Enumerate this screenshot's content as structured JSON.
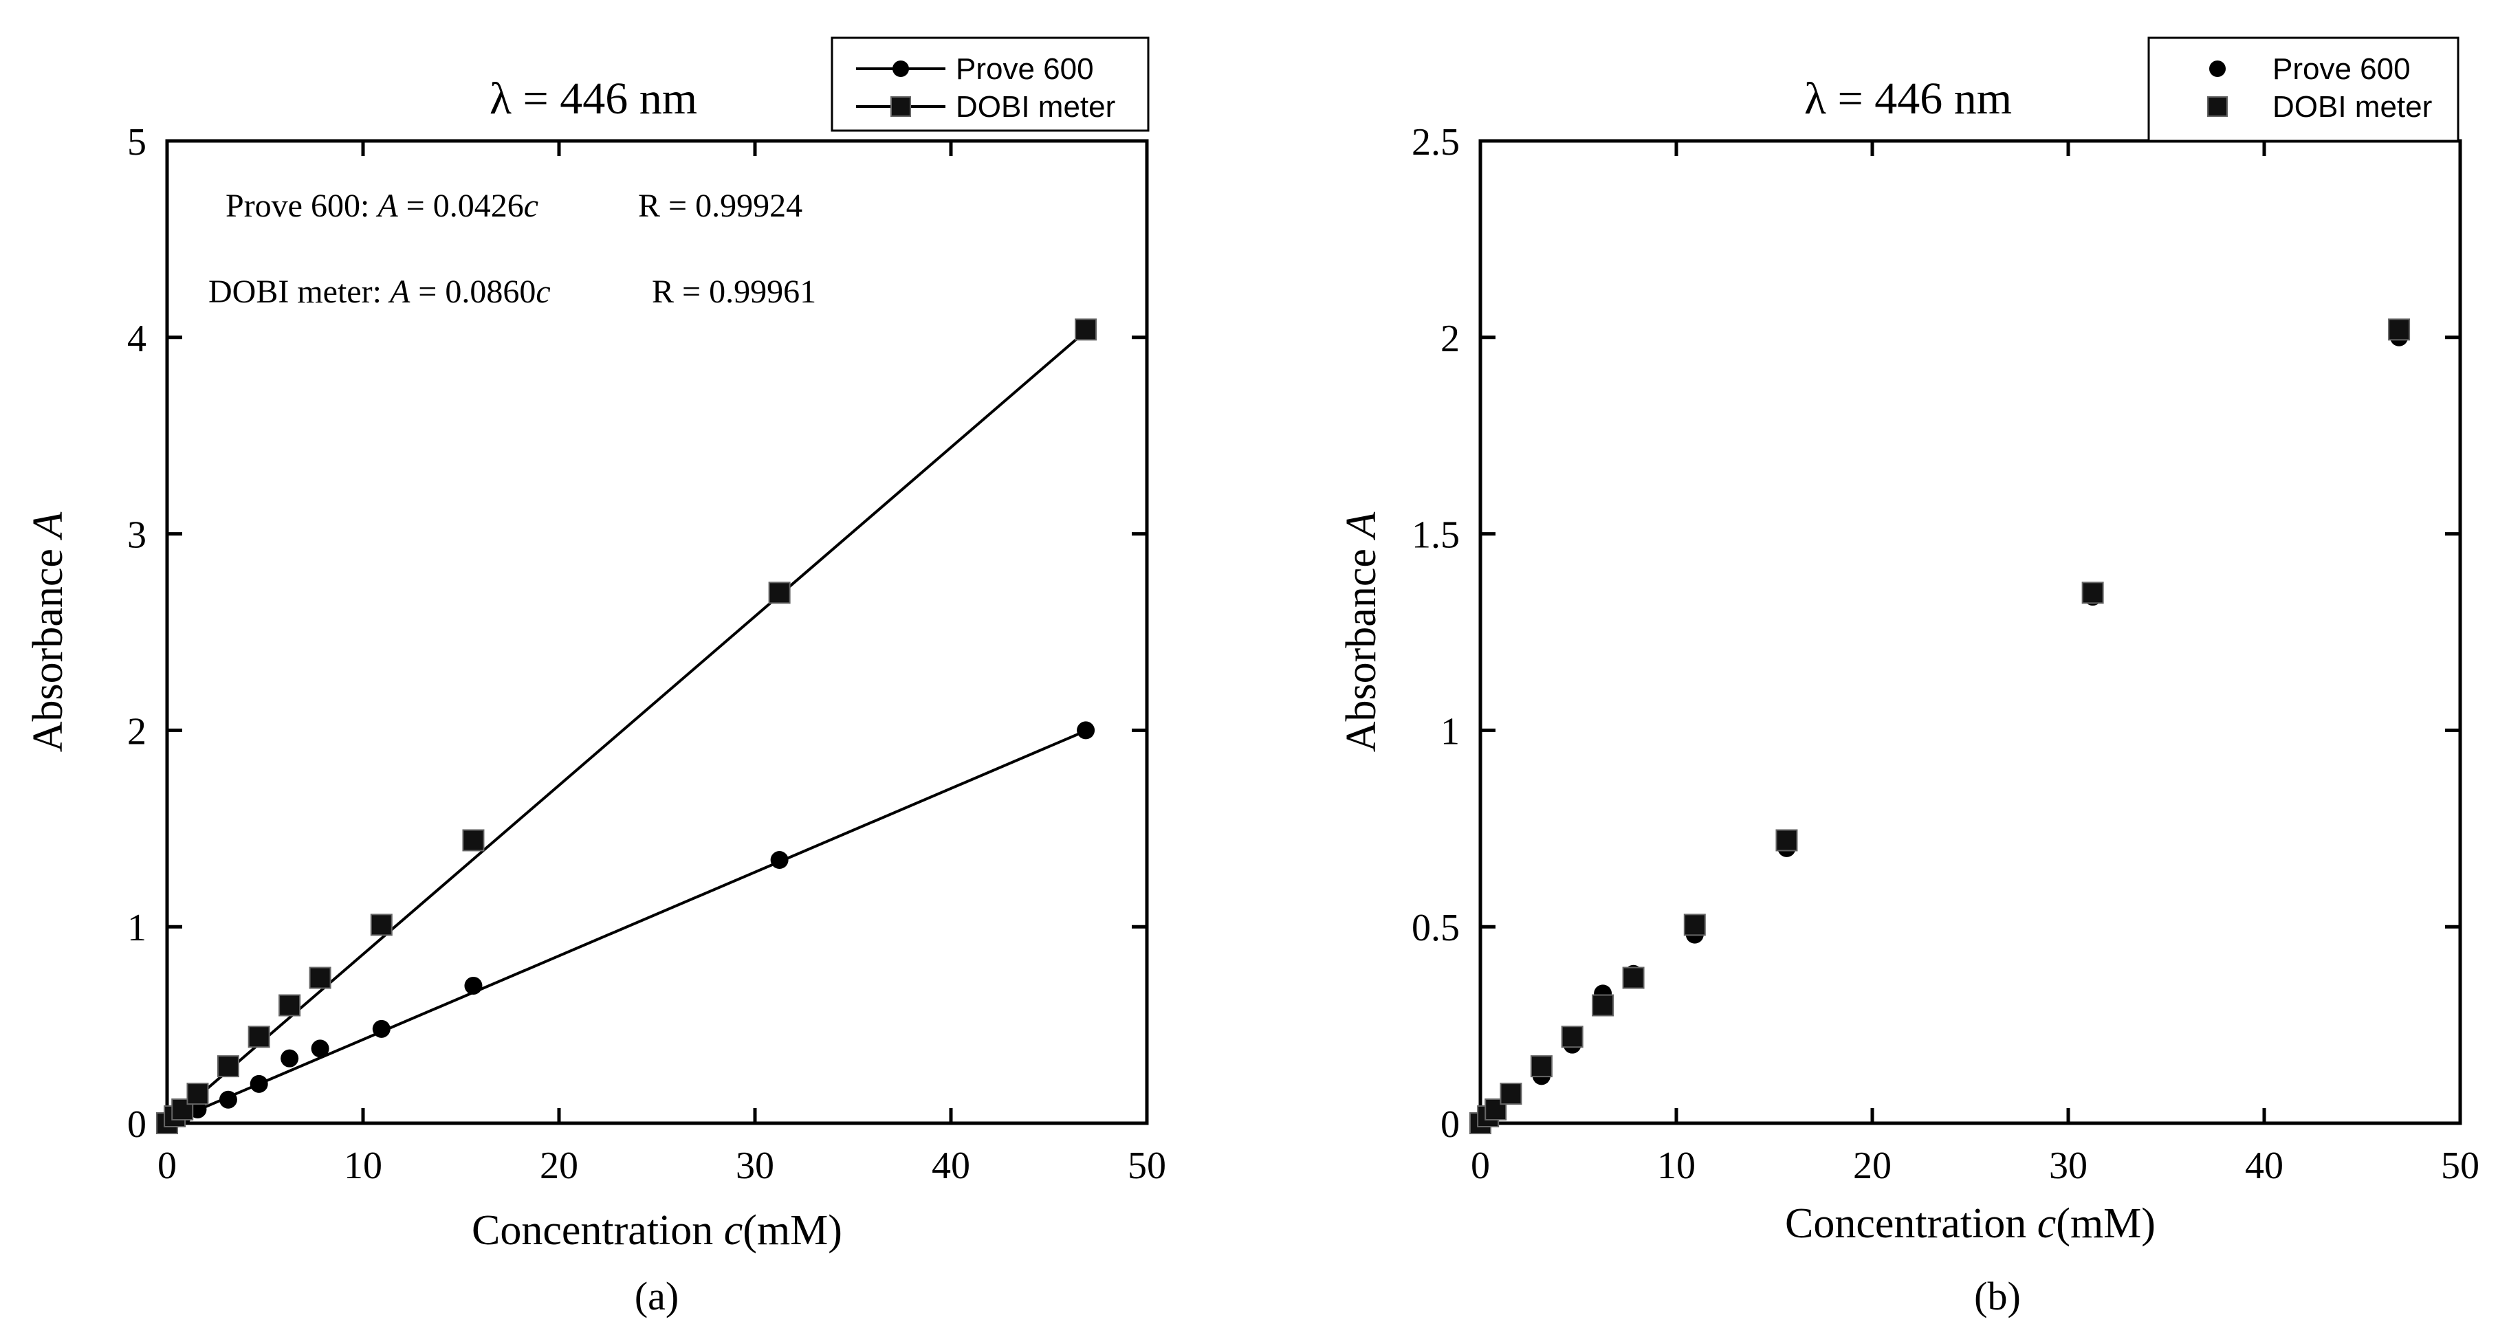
{
  "chart_data": [
    {
      "panel": "(a)",
      "type": "scatter",
      "title": "λ = 446 nm",
      "xlabel": "Concentration c(mM)",
      "xlabel_prefix": "Concentration ",
      "xlabel_var": "c",
      "xlabel_suffix": "(mM)",
      "ylabel": "Absorbance A",
      "ylabel_prefix": "Absorbance ",
      "ylabel_var": "A",
      "xlim": [
        0,
        50
      ],
      "ylim": [
        0,
        5
      ],
      "xticks": [
        0,
        10,
        20,
        30,
        40,
        50
      ],
      "xtick_labels": [
        "0",
        "10",
        "20",
        "30",
        "40",
        "50"
      ],
      "yticks": [
        0,
        1,
        2,
        3,
        4,
        5
      ],
      "ytick_labels": [
        "0",
        "1",
        "2",
        "3",
        "4",
        "5"
      ],
      "legend_position": "top-right",
      "fit_lines": true,
      "annotations": [
        {
          "label": "Prove 600: ",
          "var": "A",
          "eq": " = 0.0426",
          "cvar": "c",
          "r": "R = 0.99924"
        },
        {
          "label": "DOBI meter: ",
          "var": "A",
          "eq": " = 0.0860",
          "cvar": "c",
          "r": "R = 0.99961"
        }
      ],
      "series": [
        {
          "name": "Prove 600",
          "marker": "circle",
          "slope": 0.0426,
          "x": [
            0,
            0.39,
            0.78,
            1.56,
            3.12,
            4.69,
            6.25,
            7.81,
            10.94,
            15.63,
            31.25,
            46.88
          ],
          "y": [
            0,
            0.02,
            0.035,
            0.07,
            0.12,
            0.2,
            0.33,
            0.38,
            0.48,
            0.7,
            1.34,
            2.0
          ]
        },
        {
          "name": "DOBI meter",
          "marker": "square",
          "slope": 0.086,
          "x": [
            0,
            0.39,
            0.78,
            1.56,
            3.12,
            4.69,
            6.25,
            7.81,
            10.94,
            15.63,
            31.25,
            46.88
          ],
          "y": [
            0,
            0.035,
            0.07,
            0.15,
            0.29,
            0.44,
            0.6,
            0.74,
            1.01,
            1.44,
            2.7,
            4.04
          ]
        }
      ],
      "caption": "(a)"
    },
    {
      "panel": "(b)",
      "type": "scatter",
      "title": "λ = 446 nm",
      "xlabel": "Concentration c(mM)",
      "xlabel_prefix": "Concentration ",
      "xlabel_var": "c",
      "xlabel_suffix": "(mM)",
      "ylabel": "Absorbance A",
      "ylabel_prefix": "Absorbance ",
      "ylabel_var": "A",
      "xlim": [
        0,
        50
      ],
      "ylim": [
        0,
        2.5
      ],
      "xticks": [
        0,
        10,
        20,
        30,
        40,
        50
      ],
      "xtick_labels": [
        "0",
        "10",
        "20",
        "30",
        "40",
        "50"
      ],
      "yticks": [
        0,
        0.5,
        1,
        1.5,
        2,
        2.5
      ],
      "ytick_labels": [
        "0",
        "0.5",
        "1",
        "1.5",
        "2",
        "2.5"
      ],
      "legend_position": "top-right",
      "fit_lines": false,
      "annotations": [],
      "series": [
        {
          "name": "Prove 600",
          "marker": "circle",
          "x": [
            0,
            0.39,
            0.78,
            1.56,
            3.12,
            4.69,
            6.25,
            7.81,
            10.94,
            15.63,
            31.25,
            46.88
          ],
          "y": [
            0,
            0.02,
            0.035,
            0.07,
            0.12,
            0.2,
            0.33,
            0.38,
            0.48,
            0.7,
            1.34,
            2.0
          ]
        },
        {
          "name": "DOBI meter",
          "marker": "square",
          "x": [
            0,
            0.39,
            0.78,
            1.56,
            3.12,
            4.69,
            6.25,
            7.81,
            10.94,
            15.63,
            31.25,
            46.88
          ],
          "y": [
            0,
            0.0175,
            0.035,
            0.075,
            0.145,
            0.22,
            0.3,
            0.37,
            0.505,
            0.72,
            1.35,
            2.02
          ]
        }
      ],
      "caption": "(b)"
    }
  ]
}
